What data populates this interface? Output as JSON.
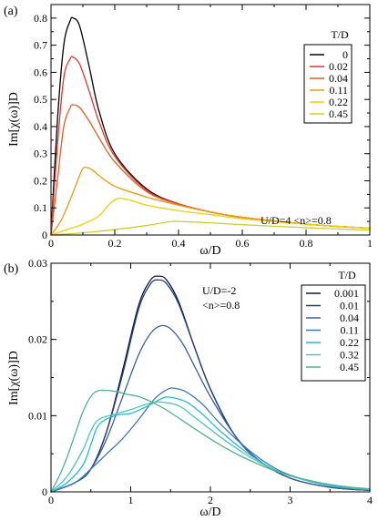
{
  "chart_data": [
    {
      "type": "line",
      "panel_label": "(a)",
      "xlabel": "ω/D",
      "ylabel": "Im[χ(ω)]D",
      "xlim": [
        0,
        1
      ],
      "ylim": [
        0,
        0.85
      ],
      "xticks": [
        0,
        0.2,
        0.4,
        0.6,
        0.8,
        1
      ],
      "xtick_labels": [
        "0",
        "0.2",
        "0.4",
        "0.6",
        "0.8",
        "1"
      ],
      "yticks": [
        0,
        0.1,
        0.2,
        0.3,
        0.4,
        0.5,
        0.6,
        0.7,
        0.8
      ],
      "ytick_labels": [
        "0",
        "0.1",
        "0.2",
        "0.3",
        "0.4",
        "0.5",
        "0.6",
        "0.7",
        "0.8"
      ],
      "legend_title": "T/D",
      "legend_position": "top-right",
      "annotation": "U/D=4  <n>=0.8",
      "grid": false,
      "series": [
        {
          "name": "0",
          "color": "#000000",
          "x": [
            0,
            0.02,
            0.04,
            0.06,
            0.07,
            0.09,
            0.12,
            0.15,
            0.2,
            0.3,
            0.4,
            0.5,
            0.6,
            0.8,
            1.0
          ],
          "y": [
            0,
            0.42,
            0.7,
            0.79,
            0.8,
            0.77,
            0.62,
            0.46,
            0.3,
            0.17,
            0.115,
            0.085,
            0.065,
            0.04,
            0.025
          ]
        },
        {
          "name": "0.02",
          "color": "#e8342c",
          "x": [
            0,
            0.02,
            0.04,
            0.06,
            0.07,
            0.09,
            0.12,
            0.15,
            0.2,
            0.3,
            0.4,
            0.5,
            0.6,
            0.8,
            1.0
          ],
          "y": [
            0,
            0.33,
            0.58,
            0.65,
            0.655,
            0.63,
            0.53,
            0.42,
            0.29,
            0.165,
            0.115,
            0.085,
            0.065,
            0.04,
            0.025
          ]
        },
        {
          "name": "0.04",
          "color": "#e85c1e",
          "x": [
            0,
            0.02,
            0.04,
            0.06,
            0.07,
            0.09,
            0.12,
            0.15,
            0.2,
            0.3,
            0.4,
            0.5,
            0.6,
            0.8,
            1.0
          ],
          "y": [
            0,
            0.2,
            0.4,
            0.47,
            0.48,
            0.47,
            0.42,
            0.36,
            0.27,
            0.16,
            0.113,
            0.085,
            0.065,
            0.04,
            0.025
          ]
        },
        {
          "name": "0.11",
          "color": "#f0980c",
          "x": [
            0,
            0.03,
            0.06,
            0.09,
            0.1,
            0.11,
            0.13,
            0.15,
            0.2,
            0.3,
            0.4,
            0.5,
            0.6,
            0.8,
            1.0
          ],
          "y": [
            0,
            0.05,
            0.13,
            0.22,
            0.245,
            0.25,
            0.24,
            0.22,
            0.18,
            0.14,
            0.11,
            0.085,
            0.065,
            0.04,
            0.025
          ]
        },
        {
          "name": "0.22",
          "color": "#f0d000",
          "x": [
            0,
            0.05,
            0.1,
            0.15,
            0.18,
            0.21,
            0.25,
            0.3,
            0.4,
            0.5,
            0.6,
            0.8,
            1.0
          ],
          "y": [
            0,
            0.02,
            0.04,
            0.07,
            0.11,
            0.135,
            0.128,
            0.11,
            0.09,
            0.075,
            0.06,
            0.04,
            0.025
          ]
        },
        {
          "name": "0.45",
          "color": "#c8d228",
          "x": [
            0,
            0.1,
            0.2,
            0.3,
            0.35,
            0.38,
            0.42,
            0.5,
            0.6,
            0.8,
            1.0
          ],
          "y": [
            0,
            0.008,
            0.02,
            0.035,
            0.045,
            0.05,
            0.049,
            0.045,
            0.038,
            0.027,
            0.018
          ]
        }
      ]
    },
    {
      "type": "line",
      "panel_label": "(b)",
      "xlabel": "ω/D",
      "ylabel": "Im[χ(ω)]D",
      "xlim": [
        0,
        4
      ],
      "ylim": [
        0,
        0.03
      ],
      "xticks": [
        0,
        1,
        2,
        3,
        4
      ],
      "xtick_labels": [
        "0",
        "1",
        "2",
        "3",
        "4"
      ],
      "yticks": [
        0,
        0.01,
        0.02,
        0.03
      ],
      "ytick_labels": [
        "0",
        "0.01",
        "0.02",
        "0.03"
      ],
      "legend_title": "T/D",
      "legend_position": "top-right",
      "annotation": "U/D=-2\n<n>=0.8",
      "grid": false,
      "series": [
        {
          "name": "0.001",
          "color": "#0a1a4a",
          "x": [
            0,
            0.3,
            0.5,
            0.7,
            0.9,
            1.1,
            1.25,
            1.35,
            1.45,
            1.6,
            1.8,
            2.0,
            2.3,
            2.6,
            3.0,
            3.5,
            4.0
          ],
          "y": [
            0,
            0.0012,
            0.003,
            0.008,
            0.016,
            0.0245,
            0.0278,
            0.0283,
            0.0278,
            0.025,
            0.019,
            0.0135,
            0.0075,
            0.0042,
            0.0018,
            0.0006,
            0.0002
          ]
        },
        {
          "name": "0.01",
          "color": "#22407e",
          "x": [
            0,
            0.3,
            0.5,
            0.7,
            0.9,
            1.1,
            1.25,
            1.35,
            1.45,
            1.6,
            1.8,
            2.0,
            2.3,
            2.6,
            3.0,
            3.5,
            4.0
          ],
          "y": [
            0,
            0.0012,
            0.003,
            0.008,
            0.0155,
            0.024,
            0.0273,
            0.0278,
            0.0273,
            0.0247,
            0.019,
            0.0135,
            0.0075,
            0.0042,
            0.0018,
            0.0006,
            0.0002
          ]
        },
        {
          "name": "0.04",
          "color": "#3a5ea2",
          "x": [
            0,
            0.3,
            0.5,
            0.7,
            0.9,
            1.1,
            1.25,
            1.38,
            1.5,
            1.65,
            1.8,
            2.0,
            2.3,
            2.6,
            3.0,
            3.5,
            4.0
          ],
          "y": [
            0,
            0.0012,
            0.003,
            0.007,
            0.0125,
            0.018,
            0.0208,
            0.0218,
            0.0214,
            0.0195,
            0.0165,
            0.0125,
            0.0075,
            0.0042,
            0.0018,
            0.0006,
            0.0002
          ]
        },
        {
          "name": "0.11",
          "color": "#3a78c0",
          "x": [
            0,
            0.3,
            0.5,
            0.7,
            0.9,
            1.1,
            1.3,
            1.45,
            1.55,
            1.7,
            1.9,
            2.1,
            2.4,
            2.7,
            3.0,
            3.5,
            4.0
          ],
          "y": [
            0,
            0.0012,
            0.003,
            0.005,
            0.007,
            0.0095,
            0.0122,
            0.0134,
            0.0136,
            0.0131,
            0.0115,
            0.0092,
            0.0062,
            0.0038,
            0.0022,
            0.0008,
            0.0003
          ]
        },
        {
          "name": "0.22",
          "color": "#28b8d0",
          "x": [
            0,
            0.2,
            0.4,
            0.5,
            0.6,
            0.8,
            1.0,
            1.2,
            1.4,
            1.5,
            1.7,
            1.9,
            2.1,
            2.4,
            2.7,
            3.0,
            3.5,
            4.0
          ],
          "y": [
            0,
            0.0012,
            0.0035,
            0.0062,
            0.0088,
            0.01,
            0.0103,
            0.0112,
            0.0123,
            0.0124,
            0.0118,
            0.0102,
            0.0082,
            0.0056,
            0.0035,
            0.0021,
            0.0008,
            0.0003
          ]
        },
        {
          "name": "0.32",
          "color": "#48c8b4",
          "x": [
            0,
            0.2,
            0.4,
            0.5,
            0.6,
            0.8,
            1.0,
            1.2,
            1.35,
            1.6,
            1.8,
            2.1,
            2.4,
            2.7,
            3.0,
            3.5,
            4.0
          ],
          "y": [
            0,
            0.002,
            0.0055,
            0.008,
            0.0095,
            0.0102,
            0.0108,
            0.0115,
            0.0118,
            0.0113,
            0.0098,
            0.0074,
            0.0052,
            0.0034,
            0.0021,
            0.0009,
            0.0003
          ]
        },
        {
          "name": "0.45",
          "color": "#4eb48a",
          "x": [
            0,
            0.1,
            0.2,
            0.3,
            0.4,
            0.5,
            0.6,
            0.8,
            0.95,
            1.1,
            1.3,
            1.5,
            1.8,
            2.1,
            2.4,
            2.8,
            3.2,
            3.6,
            4.0
          ],
          "y": [
            0,
            0.002,
            0.0045,
            0.0075,
            0.0105,
            0.0125,
            0.0133,
            0.0132,
            0.0128,
            0.0125,
            0.0116,
            0.0104,
            0.0083,
            0.0063,
            0.0046,
            0.0028,
            0.0016,
            0.0008,
            0.0004
          ]
        }
      ]
    }
  ]
}
